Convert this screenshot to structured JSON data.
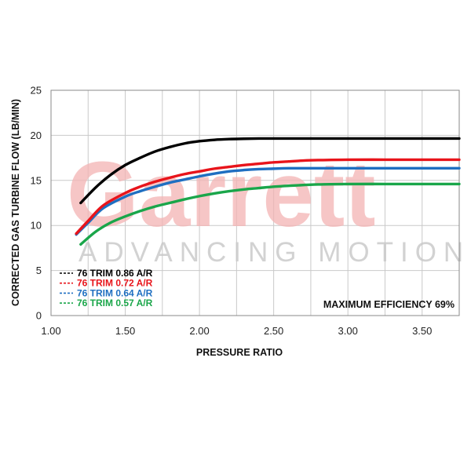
{
  "watermark": {
    "logo": "Garrett",
    "tagline": "ADVANCING MOTION",
    "logo_color": "#f4b4b4",
    "tagline_color": "#c8c8c8"
  },
  "chart_data": {
    "type": "line",
    "title": "",
    "xlabel": "PRESSURE RATIO",
    "ylabel": "CORRECTED GAS TURBINE FLOW (LB/MIN)",
    "xlim": [
      1.0,
      3.75
    ],
    "ylim": [
      0,
      25
    ],
    "x_ticks": [
      1.0,
      1.5,
      2.0,
      2.5,
      3.0,
      3.5
    ],
    "x_tick_labels": [
      "1.00",
      "1.50",
      "2.00",
      "2.50",
      "3.00",
      "3.50"
    ],
    "y_ticks": [
      0,
      5,
      10,
      15,
      20,
      25
    ],
    "y_tick_labels": [
      "0",
      "5",
      "10",
      "15",
      "20",
      "25"
    ],
    "x_minor_step": 0.25,
    "grid": true,
    "legend_position": "bottom-left",
    "annotation": "MAXIMUM EFFICIENCY 69%",
    "series": [
      {
        "name": "76 TRIM 0.86 A/R",
        "color": "#000000",
        "x": [
          1.2,
          1.3,
          1.4,
          1.5,
          1.6,
          1.7,
          1.8,
          1.9,
          2.0,
          2.1,
          2.2,
          2.3,
          2.4,
          2.5,
          2.6,
          2.8,
          3.0,
          3.25,
          3.5,
          3.75
        ],
        "y": [
          12.5,
          14.2,
          15.6,
          16.7,
          17.5,
          18.2,
          18.7,
          19.1,
          19.35,
          19.5,
          19.58,
          19.62,
          19.65,
          19.65,
          19.65,
          19.65,
          19.65,
          19.65,
          19.65,
          19.65
        ]
      },
      {
        "name": "76 TRIM 0.72 A/R",
        "color": "#e8141b",
        "x": [
          1.17,
          1.25,
          1.35,
          1.5,
          1.6,
          1.7,
          1.8,
          1.9,
          2.0,
          2.1,
          2.2,
          2.3,
          2.4,
          2.5,
          2.6,
          2.7,
          2.8,
          3.0,
          3.25,
          3.5,
          3.75
        ],
        "y": [
          9.1,
          10.5,
          12.2,
          13.6,
          14.3,
          14.85,
          15.3,
          15.7,
          16.0,
          16.3,
          16.5,
          16.7,
          16.85,
          17.0,
          17.1,
          17.2,
          17.25,
          17.3,
          17.3,
          17.3,
          17.3
        ]
      },
      {
        "name": "76 TRIM 0.64 A/R",
        "color": "#1f6fc1",
        "x": [
          1.17,
          1.25,
          1.35,
          1.5,
          1.6,
          1.7,
          1.8,
          1.9,
          2.0,
          2.1,
          2.2,
          2.3,
          2.4,
          2.5,
          2.6,
          2.8,
          3.0,
          3.25,
          3.5,
          3.75
        ],
        "y": [
          9.0,
          10.3,
          11.9,
          13.2,
          13.8,
          14.3,
          14.75,
          15.1,
          15.45,
          15.75,
          16.0,
          16.15,
          16.25,
          16.3,
          16.35,
          16.35,
          16.35,
          16.35,
          16.35,
          16.35
        ]
      },
      {
        "name": "76 TRIM 0.57 A/R",
        "color": "#1aa64a",
        "x": [
          1.2,
          1.3,
          1.4,
          1.5,
          1.6,
          1.7,
          1.8,
          1.9,
          2.0,
          2.1,
          2.2,
          2.3,
          2.4,
          2.5,
          2.6,
          2.8,
          3.0,
          3.25,
          3.5,
          3.75
        ],
        "y": [
          7.9,
          9.3,
          10.3,
          11.0,
          11.6,
          12.1,
          12.5,
          12.9,
          13.25,
          13.55,
          13.8,
          14.0,
          14.15,
          14.3,
          14.4,
          14.55,
          14.6,
          14.6,
          14.6,
          14.6
        ]
      }
    ]
  }
}
